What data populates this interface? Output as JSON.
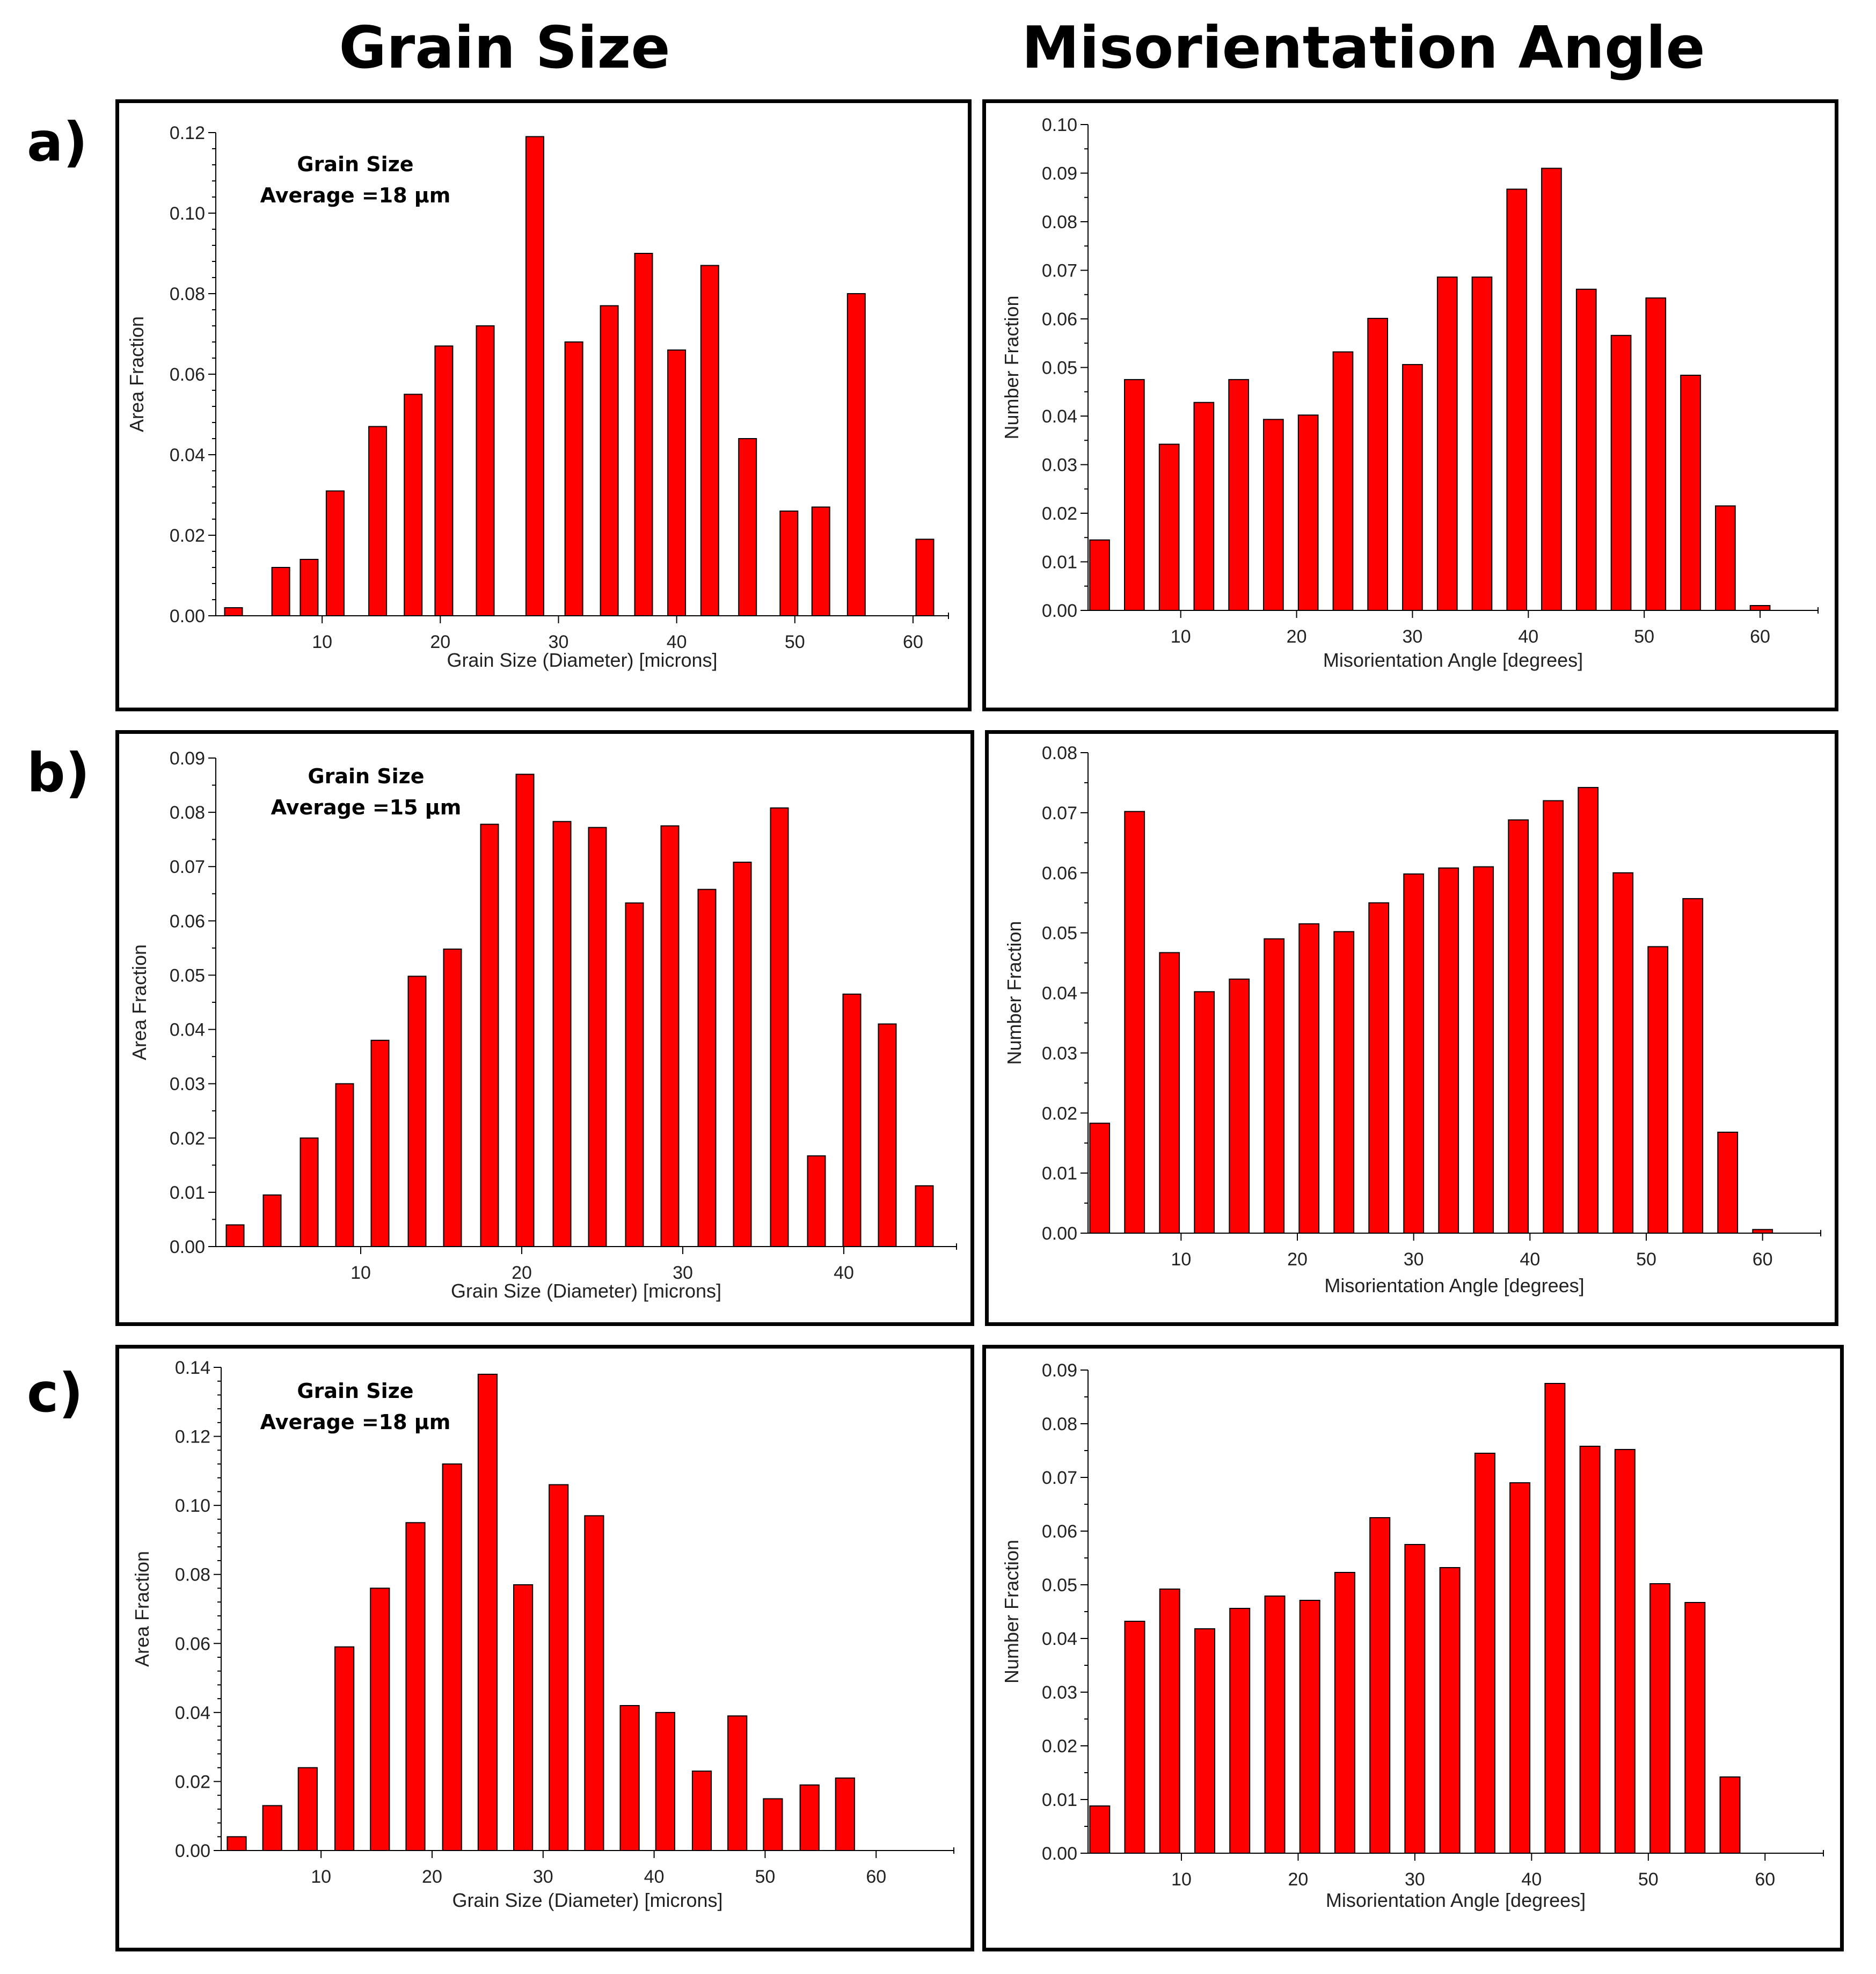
{
  "headers": {
    "left": "Grain Size",
    "right": "Misorientation Angle"
  },
  "rows": {
    "a": "a)",
    "b": "b)",
    "c": "c)"
  },
  "colors": {
    "bar": "#ff0000",
    "bar_edge": "#000000",
    "axis": "#000000",
    "border": "#000000"
  },
  "annotations": {
    "a": {
      "line1": "Grain Size",
      "line2": "Average =18 µm"
    },
    "b": {
      "line1": "Grain Size",
      "line2": "Average =15 µm"
    },
    "c": {
      "line1": "Grain Size",
      "line2": "Average =18 µm"
    }
  },
  "chart_data": [
    {
      "id": "a-grain",
      "type": "bar",
      "title": "",
      "xlabel": "Grain Size (Diameter) [microns]",
      "ylabel": "Area Fraction",
      "xlim": [
        1,
        63
      ],
      "xticks": [
        10,
        20,
        30,
        40,
        50,
        60
      ],
      "ylim": [
        0,
        0.12
      ],
      "yticks": [
        "0.00",
        "0.02",
        "0.04",
        "0.06",
        "0.08",
        "0.10",
        "0.12"
      ],
      "yminor": 4,
      "bar_width": 1.5,
      "x": [
        2.5,
        6.5,
        8.9,
        11.1,
        14.7,
        17.7,
        20.3,
        23.8,
        28.0,
        31.3,
        34.3,
        37.2,
        40.0,
        42.8,
        46.0,
        49.5,
        52.2,
        55.2,
        61.0
      ],
      "values": [
        0.002,
        0.012,
        0.014,
        0.031,
        0.047,
        0.055,
        0.067,
        0.072,
        0.119,
        0.068,
        0.077,
        0.09,
        0.066,
        0.087,
        0.044,
        0.026,
        0.027,
        0.08,
        0.019
      ],
      "grid": false,
      "legend": "none"
    },
    {
      "id": "a-misor",
      "type": "bar",
      "title": "",
      "xlabel": "Misorientation Angle [degrees]",
      "ylabel": "Number Fraction",
      "xlim": [
        2,
        65
      ],
      "xticks": [
        10,
        20,
        30,
        40,
        50,
        60
      ],
      "ylim": [
        0,
        0.1
      ],
      "yticks": [
        "0.00",
        "0.01",
        "0.02",
        "0.03",
        "0.04",
        "0.05",
        "0.06",
        "0.07",
        "0.08",
        "0.09",
        "0.10"
      ],
      "yminor": 1,
      "bar_width": 1.7,
      "x": [
        3.0,
        6.0,
        9.0,
        12.0,
        15.0,
        18.0,
        21.0,
        24.0,
        27.0,
        30.0,
        33.0,
        36.0,
        39.0,
        42.0,
        45.0,
        48.0,
        51.0,
        54.0,
        57.0,
        60.0,
        63.0
      ],
      "values": [
        0.0145,
        0.0475,
        0.0342,
        0.0428,
        0.0475,
        0.0393,
        0.0402,
        0.0532,
        0.0601,
        0.0506,
        0.0686,
        0.0686,
        0.0867,
        0.091,
        0.0661,
        0.0566,
        0.0643,
        0.0484,
        0.0215,
        0.001,
        0.0
      ],
      "grid": false,
      "legend": "none"
    },
    {
      "id": "b-grain",
      "type": "bar",
      "title": "",
      "xlabel": "Grain Size (Diameter) [microns]",
      "ylabel": "Area Fraction",
      "xlim": [
        1,
        47
      ],
      "xticks": [
        10,
        20,
        30,
        40
      ],
      "ylim": [
        0,
        0.09
      ],
      "yticks": [
        "0.00",
        "0.01",
        "0.02",
        "0.03",
        "0.04",
        "0.05",
        "0.06",
        "0.07",
        "0.08",
        "0.09"
      ],
      "yminor": 1,
      "bar_width": 1.1,
      "x": [
        2.2,
        4.5,
        6.8,
        9.0,
        11.2,
        13.5,
        15.7,
        18.0,
        20.2,
        22.5,
        24.7,
        27.0,
        29.2,
        31.5,
        33.7,
        36.0,
        38.3,
        40.5,
        42.7,
        45.0
      ],
      "values": [
        0.004,
        0.0095,
        0.02,
        0.03,
        0.038,
        0.0498,
        0.0548,
        0.0778,
        0.087,
        0.0783,
        0.0772,
        0.0633,
        0.0775,
        0.0658,
        0.0708,
        0.0808,
        0.0167,
        0.0465,
        0.041,
        0.0112
      ],
      "grid": false,
      "legend": "none"
    },
    {
      "id": "b-misor",
      "type": "bar",
      "title": "",
      "xlabel": "Misorientation Angle [degrees]",
      "ylabel": "Number Fraction",
      "xlim": [
        2,
        65
      ],
      "xticks": [
        10,
        20,
        30,
        40,
        50,
        60
      ],
      "ylim": [
        0,
        0.08
      ],
      "yticks": [
        "0.00",
        "0.01",
        "0.02",
        "0.03",
        "0.04",
        "0.05",
        "0.06",
        "0.07",
        "0.08"
      ],
      "yminor": 1,
      "bar_width": 1.7,
      "x": [
        3.0,
        6.0,
        9.0,
        12.0,
        15.0,
        18.0,
        21.0,
        24.0,
        27.0,
        30.0,
        33.0,
        36.0,
        39.0,
        42.0,
        45.0,
        48.0,
        51.0,
        54.0,
        57.0,
        60.0,
        63.0
      ],
      "values": [
        0.0183,
        0.0702,
        0.0467,
        0.0402,
        0.0423,
        0.049,
        0.0515,
        0.0502,
        0.055,
        0.0598,
        0.0608,
        0.061,
        0.0688,
        0.072,
        0.0742,
        0.06,
        0.0477,
        0.0557,
        0.0168,
        0.0006,
        0.0
      ],
      "grid": false,
      "legend": "none"
    },
    {
      "id": "c-grain",
      "type": "bar",
      "title": "",
      "xlabel": "Grain Size (Diameter) [microns]",
      "ylabel": "Area Fraction",
      "xlim": [
        1,
        67
      ],
      "xticks": [
        10,
        20,
        30,
        40,
        50,
        60
      ],
      "ylim": [
        0,
        0.14
      ],
      "yticks": [
        "0.00",
        "0.02",
        "0.04",
        "0.06",
        "0.08",
        "0.10",
        "0.12",
        "0.14"
      ],
      "yminor": 4,
      "bar_width": 1.7,
      "x": [
        2.4,
        5.6,
        8.8,
        12.1,
        15.3,
        18.5,
        21.8,
        25.0,
        28.2,
        31.4,
        34.6,
        37.8,
        41.0,
        44.3,
        47.5,
        50.7,
        54.0,
        57.2,
        60.4
      ],
      "values": [
        0.004,
        0.013,
        0.024,
        0.059,
        0.076,
        0.095,
        0.112,
        0.138,
        0.077,
        0.106,
        0.097,
        0.042,
        0.04,
        0.023,
        0.039,
        0.015,
        0.019,
        0.021,
        0.0
      ],
      "grid": false,
      "legend": "none"
    },
    {
      "id": "c-misor",
      "type": "bar",
      "title": "",
      "xlabel": "Misorientation Angle [degrees]",
      "ylabel": "Number Fraction",
      "xlim": [
        2,
        65
      ],
      "xticks": [
        10,
        20,
        30,
        40,
        50,
        60
      ],
      "ylim": [
        0,
        0.09
      ],
      "yticks": [
        "0.00",
        "0.01",
        "0.02",
        "0.03",
        "0.04",
        "0.05",
        "0.06",
        "0.07",
        "0.08",
        "0.09"
      ],
      "yminor": 1,
      "bar_width": 1.7,
      "x": [
        3.0,
        6.0,
        9.0,
        12.0,
        15.0,
        18.0,
        21.0,
        24.0,
        27.0,
        30.0,
        33.0,
        36.0,
        39.0,
        42.0,
        45.0,
        48.0,
        51.0,
        54.0,
        57.0,
        60.0
      ],
      "values": [
        0.0088,
        0.0432,
        0.0492,
        0.0418,
        0.0456,
        0.0479,
        0.0471,
        0.0523,
        0.0625,
        0.0575,
        0.0532,
        0.0745,
        0.069,
        0.0875,
        0.0758,
        0.0752,
        0.0502,
        0.0467,
        0.0142,
        0.0
      ],
      "grid": false,
      "legend": "none"
    }
  ]
}
